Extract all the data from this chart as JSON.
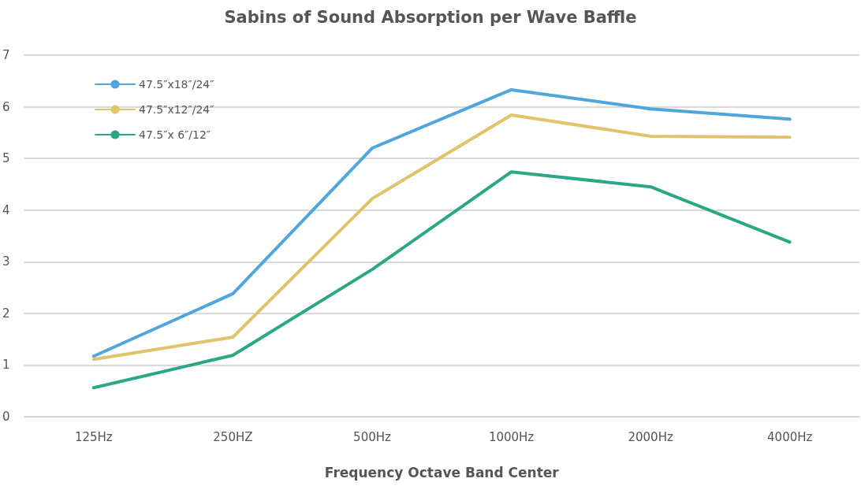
{
  "chart_data": {
    "type": "line",
    "title": "Sabins of Sound Absorption per Wave Baffle",
    "xlabel": "Frequency Octave Band Center",
    "categories": [
      "125Hz",
      "250HZ",
      "500Hz",
      "1000Hz",
      "2000Hz",
      "4000Hz"
    ],
    "series": [
      {
        "name": "47.5″x18″/24″",
        "color": "#4ea6dc",
        "values": [
          1.17,
          2.38,
          5.2,
          6.33,
          5.96,
          5.76
        ]
      },
      {
        "name": "47.5″x12″/24″",
        "color": "#e0c36a",
        "values": [
          1.11,
          1.54,
          4.22,
          5.84,
          5.43,
          5.41
        ]
      },
      {
        "name": "47.5″x 6″/12″",
        "color": "#2aa886",
        "values": [
          0.56,
          1.19,
          2.85,
          4.74,
          4.45,
          3.38
        ]
      }
    ],
    "ylim": [
      0,
      7
    ],
    "yticks": [
      0,
      1,
      2,
      3,
      4,
      5,
      6,
      7
    ],
    "grid": "y",
    "legend": "top left",
    "marker": "none",
    "line_style": "solid"
  }
}
